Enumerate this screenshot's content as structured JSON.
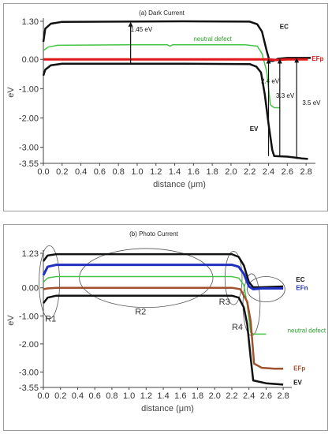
{
  "chart_data": [
    {
      "type": "line",
      "title": "(a) Dark Current",
      "xlabel": "distance (μm)",
      "ylabel": "eV",
      "xlim": [
        0,
        2.9
      ],
      "ylim": [
        -3.55,
        1.3
      ],
      "xticks": [
        "0.0",
        "0.2",
        "0.4",
        "0.6",
        "0.8",
        "1.0",
        "1.2",
        "1.4",
        "1.6",
        "1.8",
        "2.0",
        "2.2",
        "2.4",
        "2.6",
        "2.8"
      ],
      "yticks": [
        "1.30",
        "0.00",
        "-1.00",
        "-2.00",
        "-3.00",
        "-3.55"
      ],
      "ytick_values": [
        1.3,
        0.0,
        -1.0,
        -2.0,
        -3.0,
        -3.55
      ],
      "series": [
        {
          "name": "EC",
          "color": "#111111",
          "width": 2.5,
          "points": [
            [
              0,
              0.6
            ],
            [
              0.02,
              1.05
            ],
            [
              0.08,
              1.22
            ],
            [
              0.2,
              1.28
            ],
            [
              1.5,
              1.3
            ],
            [
              2.2,
              1.29
            ],
            [
              2.28,
              1.2
            ],
            [
              2.33,
              0.95
            ],
            [
              2.38,
              0.3
            ],
            [
              2.41,
              -0.05
            ],
            [
              2.45,
              -0.05
            ],
            [
              2.5,
              0.02
            ],
            [
              2.6,
              0.05
            ],
            [
              2.85,
              0.05
            ]
          ]
        },
        {
          "name": "neutral defect",
          "color": "#44c444",
          "width": 1.5,
          "points": [
            [
              0,
              0.3
            ],
            [
              0.05,
              0.42
            ],
            [
              0.15,
              0.48
            ],
            [
              0.9,
              0.5
            ],
            [
              1.32,
              0.5
            ],
            [
              1.35,
              0.45
            ],
            [
              1.38,
              0.5
            ],
            [
              2.15,
              0.5
            ],
            [
              2.28,
              0.45
            ],
            [
              2.33,
              0.2
            ],
            [
              2.38,
              -0.4
            ],
            [
              2.42,
              -1.55
            ],
            [
              2.46,
              -1.65
            ],
            [
              2.52,
              -1.65
            ]
          ]
        },
        {
          "name": "EFp",
          "color": "#e01818",
          "width": 3,
          "points": [
            [
              0,
              0.0
            ],
            [
              2.4,
              0.0
            ],
            [
              2.48,
              -0.02
            ],
            [
              2.6,
              0.0
            ],
            [
              2.82,
              0.0
            ]
          ]
        },
        {
          "name": "EV",
          "color": "#111111",
          "width": 2.5,
          "points": [
            [
              0,
              -0.55
            ],
            [
              0.02,
              -0.35
            ],
            [
              0.08,
              -0.2
            ],
            [
              0.2,
              -0.15
            ],
            [
              1.5,
              -0.15
            ],
            [
              2.2,
              -0.16
            ],
            [
              2.27,
              -0.25
            ],
            [
              2.32,
              -0.45
            ],
            [
              2.36,
              -1.2
            ],
            [
              2.4,
              -2.2
            ],
            [
              2.44,
              -3.1
            ],
            [
              2.46,
              -3.3
            ],
            [
              2.6,
              -3.32
            ],
            [
              2.75,
              -3.38
            ],
            [
              2.82,
              -3.4
            ]
          ]
        }
      ],
      "annotations": [
        {
          "text": "1.45 eV",
          "x": 0.93,
          "y": 0.95,
          "color": "#111111"
        },
        {
          "text": "neutral defect",
          "x": 1.6,
          "y": 0.62,
          "color": "#2a9e2a"
        },
        {
          "text": "EC",
          "x": 2.52,
          "y": 1.05,
          "color": "#111111",
          "bold": true
        },
        {
          "text": "EFp",
          "x": 2.86,
          "y": -0.05,
          "color": "#e01818",
          "bold": true
        },
        {
          "text": "2.4 eV",
          "x": 2.32,
          "y": -0.82,
          "color": "#111111"
        },
        {
          "text": "3.3 eV",
          "x": 2.48,
          "y": -1.32,
          "color": "#111111"
        },
        {
          "text": "3.5 eV",
          "x": 2.76,
          "y": -1.55,
          "color": "#111111"
        },
        {
          "text": "EV",
          "x": 2.2,
          "y": -2.45,
          "color": "#111111",
          "bold": true
        }
      ]
    },
    {
      "type": "line",
      "title": "(b) Photo Current",
      "xlabel": "distance (μm)",
      "ylabel": "eV",
      "xlim": [
        0,
        2.9
      ],
      "ylim": [
        -3.55,
        1.23
      ],
      "xticks": [
        "0.0",
        "0.2",
        "0.4",
        "0.6",
        "0.8",
        "1.0",
        "1.2",
        "1.4",
        "1.6",
        "1.8",
        "2.0",
        "2.2",
        "2.4",
        "2.6",
        "2.8"
      ],
      "yticks": [
        "1.23",
        "0.00",
        "-1.00",
        "-2.00",
        "-3.00",
        "-3.55"
      ],
      "ytick_values": [
        1.23,
        0.0,
        -1.0,
        -2.0,
        -3.0,
        -3.55
      ],
      "series": [
        {
          "name": "EC",
          "color": "#111111",
          "width": 2.5,
          "points": [
            [
              0,
              0.95
            ],
            [
              0.05,
              1.15
            ],
            [
              0.15,
              1.2
            ],
            [
              2.2,
              1.2
            ],
            [
              2.28,
              1.1
            ],
            [
              2.34,
              0.8
            ],
            [
              2.4,
              0.2
            ],
            [
              2.45,
              0.02
            ],
            [
              2.55,
              0.02
            ],
            [
              2.8,
              0.05
            ]
          ]
        },
        {
          "name": "EFn",
          "color": "#1f2fbf",
          "width": 3,
          "points": [
            [
              0,
              0.45
            ],
            [
              0.05,
              0.75
            ],
            [
              0.15,
              0.82
            ],
            [
              2.2,
              0.82
            ],
            [
              2.28,
              0.75
            ],
            [
              2.34,
              0.5
            ],
            [
              2.4,
              0.05
            ],
            [
              2.45,
              -0.05
            ],
            [
              2.55,
              -0.02
            ],
            [
              2.8,
              -0.02
            ]
          ]
        },
        {
          "name": "neutral defect",
          "color": "#44c444",
          "width": 1.5,
          "points": [
            [
              0,
              0.2
            ],
            [
              0.05,
              0.35
            ],
            [
              0.15,
              0.4
            ],
            [
              2.2,
              0.4
            ],
            [
              2.28,
              0.35
            ],
            [
              2.34,
              0.1
            ],
            [
              2.38,
              -0.6
            ],
            [
              2.42,
              -1.6
            ],
            [
              2.46,
              -1.65
            ],
            [
              2.6,
              -1.65
            ]
          ]
        },
        {
          "name": "EFp",
          "color": "#a0522d",
          "width": 2.5,
          "points": [
            [
              0,
              -0.05
            ],
            [
              0.05,
              -0.02
            ],
            [
              0.15,
              0.0
            ],
            [
              2.2,
              0.0
            ],
            [
              2.3,
              -0.05
            ],
            [
              2.38,
              -0.5
            ],
            [
              2.42,
              -1.2
            ],
            [
              2.46,
              -2.7
            ],
            [
              2.55,
              -2.85
            ],
            [
              2.7,
              -2.88
            ],
            [
              2.8,
              -2.88
            ]
          ]
        },
        {
          "name": "EV",
          "color": "#111111",
          "width": 2.5,
          "points": [
            [
              0,
              -0.55
            ],
            [
              0.05,
              -0.35
            ],
            [
              0.15,
              -0.28
            ],
            [
              2.2,
              -0.28
            ],
            [
              2.28,
              -0.35
            ],
            [
              2.34,
              -0.7
            ],
            [
              2.38,
              -1.3
            ],
            [
              2.42,
              -2.5
            ],
            [
              2.45,
              -3.3
            ],
            [
              2.6,
              -3.4
            ],
            [
              2.8,
              -3.45
            ]
          ]
        }
      ],
      "regions": [
        {
          "label": "R1",
          "cx": 0.07,
          "cy": 0.2,
          "rx": 0.12,
          "ry": 1.3,
          "lx": 0.02,
          "ly": -1.2
        },
        {
          "label": "R2",
          "cx": 1.2,
          "cy": 0.35,
          "rx": 0.78,
          "ry": 1.05,
          "lx": 1.07,
          "ly": -0.95
        },
        {
          "label": "R3",
          "cx": 2.22,
          "cy": 0.35,
          "rx": 0.1,
          "ry": 0.95,
          "lx": 2.05,
          "ly": -0.6
        },
        {
          "label": "R4",
          "cx": 2.43,
          "cy": -0.6,
          "rx": 0.1,
          "ry": 1.1,
          "lx": 2.2,
          "ly": -1.5
        }
      ],
      "extra_circle": {
        "cx": 2.6,
        "cy": -0.05,
        "rx": 0.22,
        "ry": 0.45
      },
      "annotations": [
        {
          "text": "EC",
          "x": 2.95,
          "y": 0.22,
          "color": "#111111",
          "bold": true
        },
        {
          "text": "EFn",
          "x": 2.95,
          "y": -0.08,
          "color": "#1f2fbf",
          "bold": true
        },
        {
          "text": "neutral defect",
          "x": 2.85,
          "y": -1.6,
          "color": "#2a9e2a"
        },
        {
          "text": "EFp",
          "x": 2.92,
          "y": -2.95,
          "color": "#a0522d",
          "bold": true
        },
        {
          "text": "EV",
          "x": 2.92,
          "y": -3.45,
          "color": "#111111",
          "bold": true
        }
      ]
    }
  ]
}
